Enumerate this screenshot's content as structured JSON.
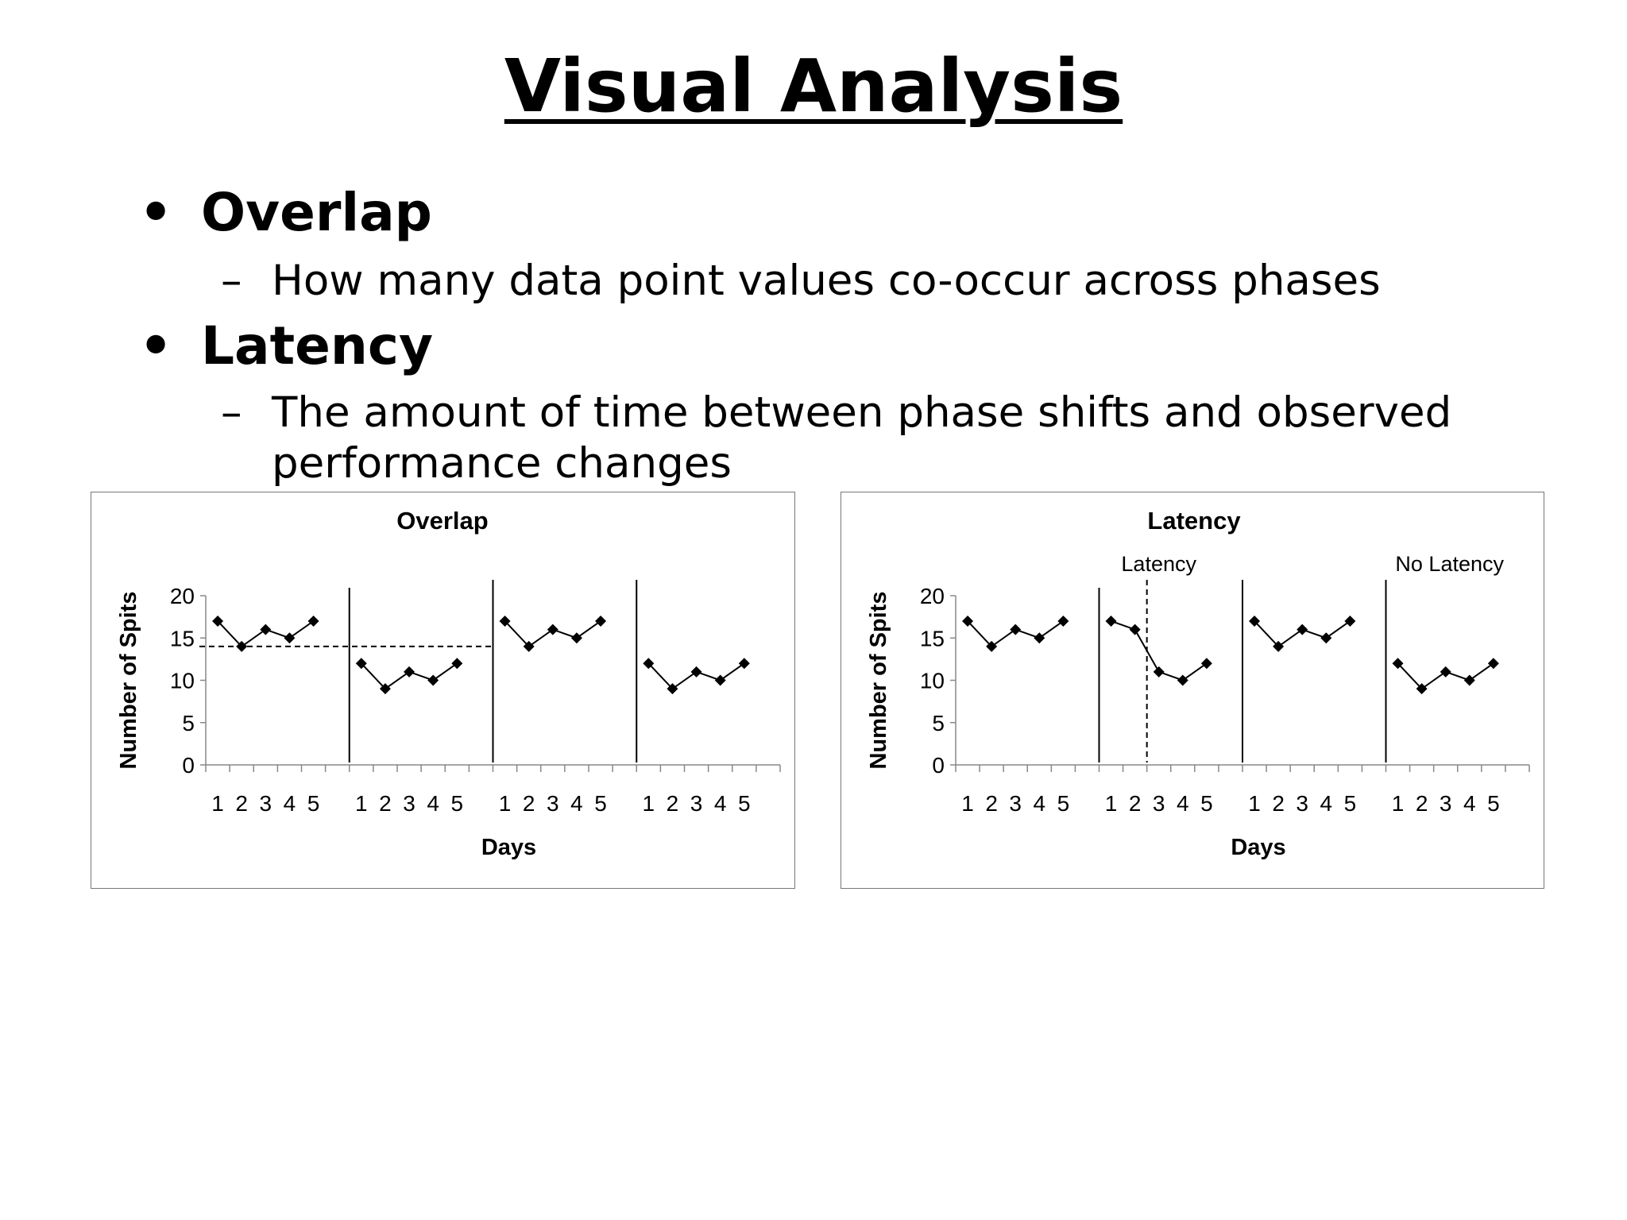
{
  "slide": {
    "title": "Visual Analysis",
    "bullets": [
      {
        "heading": "Overlap",
        "detail": "How many data point values co-occur across phases"
      },
      {
        "heading": "Latency",
        "detail_lines": [
          "The amount of time between phase shifts and observed",
          "performance changes"
        ]
      }
    ],
    "bullet_glyph": "•",
    "dash_glyph": "–"
  },
  "chart_data": [
    {
      "type": "line",
      "title": "Overlap",
      "xlabel": "Days",
      "ylabel": "Number of Spits",
      "ylim": [
        0,
        20
      ],
      "yticks": [
        0,
        5,
        10,
        15,
        20
      ],
      "grid": false,
      "phase_days": [
        "1",
        "2",
        "3",
        "4",
        "5"
      ],
      "series": [
        {
          "values": [
            17,
            14,
            16,
            15,
            17
          ]
        },
        {
          "values": [
            12,
            9,
            11,
            10,
            12
          ]
        },
        {
          "values": [
            17,
            14,
            16,
            15,
            17
          ]
        },
        {
          "values": [
            12,
            9,
            11,
            10,
            12
          ]
        }
      ],
      "annotations": [],
      "reference_line_y": 14
    },
    {
      "type": "line",
      "title": "Latency",
      "xlabel": "Days",
      "ylabel": "Number of Spits",
      "ylim": [
        0,
        20
      ],
      "yticks": [
        0,
        5,
        10,
        15,
        20
      ],
      "grid": false,
      "phase_days": [
        "1",
        "2",
        "3",
        "4",
        "5"
      ],
      "series": [
        {
          "values": [
            17,
            14,
            16,
            15,
            17
          ]
        },
        {
          "values": [
            17,
            16,
            11,
            10,
            12
          ]
        },
        {
          "values": [
            17,
            14,
            16,
            15,
            17
          ]
        },
        {
          "values": [
            12,
            9,
            11,
            10,
            12
          ]
        }
      ],
      "annotations": [
        "Latency",
        "No Latency"
      ],
      "latency_marker_day": 2.5
    }
  ]
}
